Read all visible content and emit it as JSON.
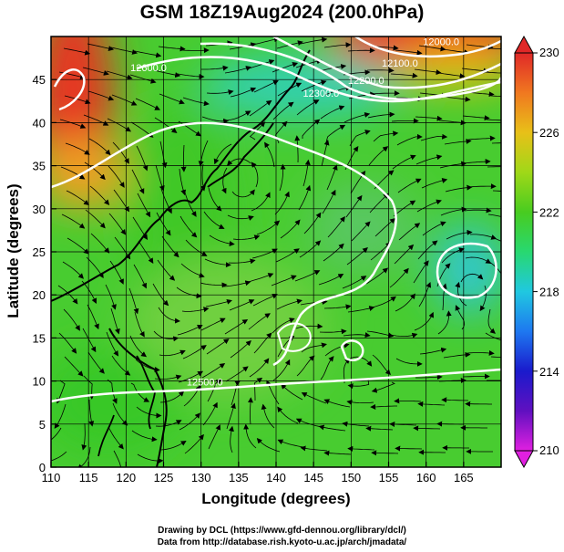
{
  "title": "GSM 18Z19Aug2024 (200.0hPa)",
  "credits": [
    "Drawing by DCL (https://www.gfd-dennou.org/library/dcl/)",
    "Data from http://database.rish.kyoto-u.ac.jp/arch/jmadata/"
  ],
  "chart_data": {
    "type": "heatmap",
    "xlabel": "Longitude (degrees)",
    "ylabel": "Latitude  (degrees)",
    "xlim": [
      110,
      170
    ],
    "ylim": [
      0,
      50
    ],
    "x_ticks": [
      110,
      115,
      120,
      125,
      130,
      135,
      140,
      145,
      150,
      155,
      160,
      165
    ],
    "y_ticks": [
      0,
      5,
      10,
      15,
      20,
      25,
      30,
      35,
      40,
      45
    ],
    "colorbar": {
      "min": 210,
      "max": 230,
      "ticks": [
        210,
        214,
        218,
        222,
        226,
        230
      ],
      "colormap": [
        "#e020e0",
        "#6010c0",
        "#1a1acc",
        "#1e78f0",
        "#20c8e0",
        "#28d870",
        "#48cc20",
        "#a0d818",
        "#e8c018",
        "#f07820",
        "#e02828"
      ]
    },
    "field_features": [
      {
        "kind": "high temperature",
        "lon": 112,
        "lat": 42,
        "value": 229
      },
      {
        "kind": "high temperature",
        "lon": 155,
        "lat": 49,
        "value": 229
      },
      {
        "kind": "low temperature",
        "lon": 148,
        "lat": 45,
        "value": 219
      },
      {
        "kind": "low temperature",
        "lon": 165,
        "lat": 25,
        "value": 219
      }
    ],
    "contour_labels": [
      {
        "text": "12600.0",
        "lon": 123,
        "lat": 46
      },
      {
        "text": "12300.0",
        "lon": 146,
        "lat": 43
      },
      {
        "text": "12200.0",
        "lon": 152,
        "lat": 44.5
      },
      {
        "text": "12100.0",
        "lon": 156.5,
        "lat": 46.5
      },
      {
        "text": "12000.0",
        "lon": 162,
        "lat": 49
      },
      {
        "text": "12500.0",
        "lon": 130.5,
        "lat": 9.5
      }
    ]
  }
}
